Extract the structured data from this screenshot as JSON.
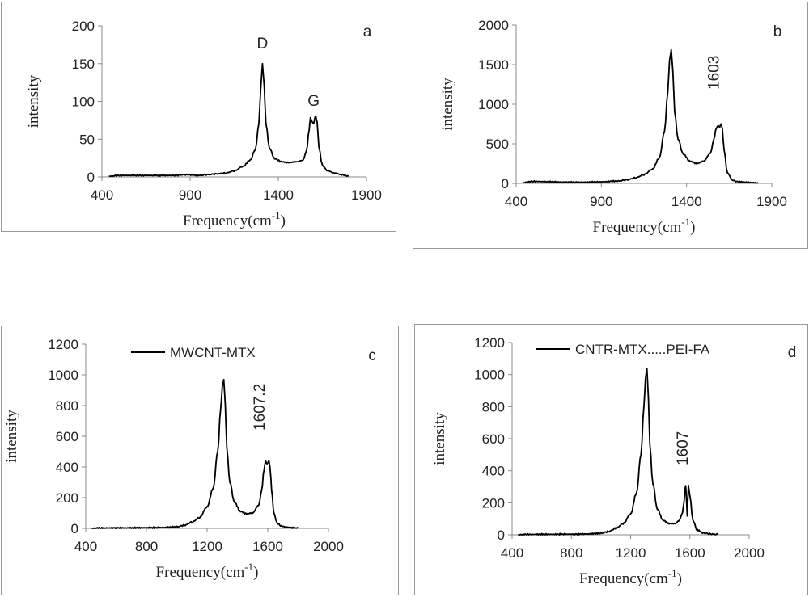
{
  "chart_data": [
    {
      "panel": "a",
      "type": "line",
      "panel_label": "a",
      "xlabel": "Frequency(cm",
      "xlabel_sup": "-1",
      "xlabel_end": ")",
      "ylabel": "intensity",
      "xlim": [
        400,
        1900
      ],
      "ylim": [
        0,
        200
      ],
      "xticks": [
        400,
        900,
        1400,
        1900
      ],
      "yticks": [
        0,
        50,
        100,
        150,
        200
      ],
      "grid": false,
      "legend": null,
      "annotations": [
        {
          "text": "D",
          "x": 1310,
          "y": 170,
          "rotate": false
        },
        {
          "text": "G",
          "x": 1600,
          "y": 94,
          "rotate": false
        }
      ],
      "peaks": [
        {
          "center": 1310,
          "height": 128,
          "width": 24
        },
        {
          "center": 1582,
          "height": 56,
          "width": 14
        },
        {
          "center": 1613,
          "height": 56,
          "width": 14
        }
      ],
      "baseline": 2,
      "shoulder": 18,
      "x": [
        440,
        500,
        600,
        700,
        800,
        880,
        950,
        1000,
        1050,
        1100,
        1150,
        1200,
        1240,
        1270,
        1290,
        1300,
        1310,
        1320,
        1330,
        1350,
        1380,
        1420,
        1460,
        1500,
        1540,
        1560,
        1575,
        1582,
        1590,
        1600,
        1607,
        1613,
        1620,
        1630,
        1650,
        1680,
        1720,
        1760,
        1800
      ],
      "y": [
        1,
        2,
        2,
        2,
        2,
        3,
        2,
        3,
        4,
        5,
        8,
        14,
        22,
        36,
        70,
        115,
        150,
        120,
        70,
        38,
        24,
        20,
        19,
        20,
        22,
        35,
        62,
        79,
        74,
        70,
        78,
        80,
        72,
        40,
        15,
        8,
        5,
        3,
        1
      ]
    },
    {
      "panel": "b",
      "type": "line",
      "panel_label": "b",
      "xlabel": "Frequency(cm",
      "xlabel_sup": "-1",
      "xlabel_end": ")",
      "ylabel": "intensity",
      "xlim": [
        400,
        1900
      ],
      "ylim": [
        0,
        2000
      ],
      "xticks": [
        400,
        900,
        1400,
        1900
      ],
      "yticks": [
        0,
        500,
        1000,
        1500,
        2000
      ],
      "grid": false,
      "legend": null,
      "annotations": [
        {
          "text": "1603",
          "x": 1590,
          "y": 1400,
          "rotate": true
        }
      ],
      "x": [
        440,
        500,
        600,
        700,
        800,
        900,
        1000,
        1050,
        1100,
        1150,
        1200,
        1240,
        1270,
        1290,
        1300,
        1310,
        1320,
        1330,
        1350,
        1380,
        1420,
        1460,
        1500,
        1540,
        1560,
        1575,
        1585,
        1595,
        1603,
        1610,
        1620,
        1640,
        1670,
        1700,
        1740,
        1780,
        1820
      ],
      "y": [
        10,
        25,
        20,
        15,
        15,
        20,
        30,
        45,
        70,
        110,
        180,
        320,
        650,
        1150,
        1550,
        1690,
        1400,
        900,
        560,
        370,
        280,
        250,
        280,
        380,
        560,
        700,
        730,
        710,
        750,
        680,
        420,
        130,
        40,
        20,
        15,
        10,
        5
      ]
    },
    {
      "panel": "c",
      "type": "line",
      "panel_label": "c",
      "xlabel": "Frequency(cm",
      "xlabel_sup": "-1",
      "xlabel_end": ")",
      "ylabel": "intensity",
      "xlim": [
        400,
        2000
      ],
      "ylim": [
        0,
        1200
      ],
      "xticks": [
        400,
        800,
        1200,
        1600,
        2000
      ],
      "yticks": [
        0,
        200,
        400,
        600,
        800,
        1000,
        1200
      ],
      "grid": false,
      "legend": {
        "entries": [
          "MWCNT-MTX"
        ],
        "position": "top-left"
      },
      "annotations": [
        {
          "text": "1607.2",
          "x": 1580,
          "y": 790,
          "rotate": true
        }
      ],
      "x": [
        440,
        500,
        600,
        700,
        800,
        900,
        1000,
        1050,
        1100,
        1150,
        1200,
        1240,
        1270,
        1290,
        1300,
        1310,
        1320,
        1330,
        1350,
        1380,
        1420,
        1460,
        1500,
        1540,
        1560,
        1575,
        1585,
        1595,
        1607,
        1615,
        1625,
        1640,
        1660,
        1690,
        1720,
        1760,
        1800
      ],
      "y": [
        0,
        2,
        3,
        3,
        4,
        5,
        10,
        20,
        40,
        70,
        140,
        260,
        500,
        780,
        920,
        970,
        800,
        520,
        300,
        170,
        110,
        95,
        100,
        150,
        250,
        380,
        440,
        420,
        440,
        400,
        250,
        100,
        35,
        15,
        8,
        4,
        2
      ]
    },
    {
      "panel": "d",
      "type": "line",
      "panel_label": "d",
      "xlabel": "Frequency(cm",
      "xlabel_sup": "-1",
      "xlabel_end": ")",
      "ylabel": "intensity",
      "xlim": [
        400,
        2000
      ],
      "ylim": [
        0,
        1200
      ],
      "xticks": [
        400,
        800,
        1200,
        1600,
        2000
      ],
      "yticks": [
        0,
        200,
        400,
        600,
        800,
        1000,
        1200
      ],
      "grid": false,
      "legend": {
        "entries": [
          "CNTR-MTX.....PEI-FA"
        ],
        "position": "top-left"
      },
      "annotations": [
        {
          "text": "1607",
          "x": 1585,
          "y": 540,
          "rotate": true
        }
      ],
      "x": [
        440,
        500,
        600,
        700,
        800,
        900,
        1000,
        1050,
        1100,
        1150,
        1200,
        1240,
        1270,
        1290,
        1300,
        1310,
        1320,
        1330,
        1350,
        1380,
        1420,
        1460,
        1500,
        1530,
        1550,
        1560,
        1567,
        1572,
        1578,
        1582,
        1590,
        1600,
        1620,
        1650,
        1690,
        1740,
        1790
      ],
      "y": [
        0,
        2,
        3,
        3,
        4,
        5,
        10,
        20,
        40,
        70,
        130,
        260,
        500,
        800,
        970,
        1040,
        850,
        560,
        320,
        160,
        90,
        70,
        70,
        90,
        140,
        200,
        280,
        310,
        200,
        120,
        310,
        240,
        90,
        30,
        12,
        5,
        2
      ]
    }
  ]
}
